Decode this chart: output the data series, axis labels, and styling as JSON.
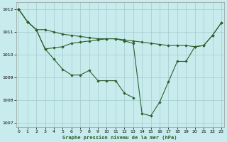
{
  "title": "Graphe pression niveau de la mer (hPa)",
  "bg_color": "#c8ecee",
  "grid_color": "#a0cccc",
  "line_color": "#2d5f2d",
  "marker_color": "#2d5f2d",
  "x_min": 0,
  "x_max": 23,
  "y_min": 1006.8,
  "y_max": 1012.3,
  "y_ticks": [
    1007,
    1008,
    1009,
    1010,
    1011,
    1012
  ],
  "x_ticks": [
    0,
    1,
    2,
    3,
    4,
    5,
    6,
    7,
    8,
    9,
    10,
    11,
    12,
    13,
    14,
    15,
    16,
    17,
    18,
    19,
    20,
    21,
    22,
    23
  ],
  "series": [
    {
      "x": [
        0,
        1,
        2,
        3,
        4,
        5,
        6,
        7,
        8,
        9,
        10,
        11,
        12,
        13
      ],
      "y": [
        1012.0,
        1011.45,
        1011.1,
        1010.25,
        1009.8,
        1009.35,
        1009.1,
        1009.1,
        1009.3,
        1008.85,
        1008.85,
        1008.85,
        1008.3,
        1008.1
      ]
    },
    {
      "x": [
        0,
        1,
        2,
        3,
        4,
        5,
        6,
        7,
        8,
        9,
        10,
        11,
        12,
        13,
        14,
        15,
        16,
        17,
        18,
        19,
        20,
        21,
        22,
        23
      ],
      "y": [
        1012.0,
        1011.45,
        1011.1,
        1010.25,
        1010.3,
        1010.35,
        1010.5,
        1010.55,
        1010.6,
        1010.65,
        1010.7,
        1010.7,
        1010.6,
        1010.5,
        1007.4,
        1007.3,
        1007.9,
        1008.8,
        1009.7,
        1009.7,
        1010.35,
        1010.4,
        1010.85,
        1011.4
      ]
    },
    {
      "x": [
        0,
        1,
        2,
        3,
        4,
        5,
        6,
        7,
        8,
        9,
        10,
        11,
        12,
        13,
        14,
        15,
        16,
        17,
        18,
        19,
        20,
        21,
        22,
        23
      ],
      "y": [
        1012.0,
        1011.45,
        1011.1,
        1011.1,
        1011.0,
        1010.9,
        1010.85,
        1010.8,
        1010.75,
        1010.7,
        1010.7,
        1010.7,
        1010.65,
        1010.6,
        1010.55,
        1010.5,
        1010.45,
        1010.4,
        1010.4,
        1010.4,
        1010.35,
        1010.4,
        1010.85,
        1011.4
      ]
    }
  ]
}
